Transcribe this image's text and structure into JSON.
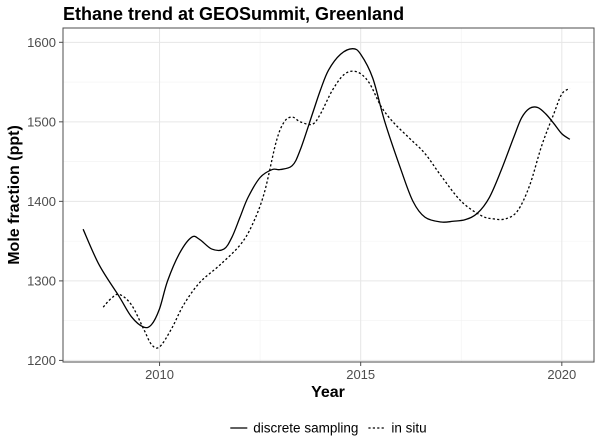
{
  "chart_data": {
    "type": "line",
    "title": "Ethane trend at GEOSummit, Greenland",
    "xlabel": "Year",
    "ylabel": "Mole fraction (ppt)",
    "xlim": [
      2007.6,
      2020.8
    ],
    "ylim": [
      1198,
      1618
    ],
    "x_ticks": [
      2010,
      2015,
      2020
    ],
    "y_ticks": [
      1200,
      1300,
      1400,
      1500,
      1600
    ],
    "grid": true,
    "legend_position": "bottom",
    "series": [
      {
        "name": "discrete sampling",
        "line_style": "solid",
        "color": "#000000",
        "x": [
          2008.1,
          2008.5,
          2009.0,
          2009.3,
          2009.6,
          2009.8,
          2010.0,
          2010.2,
          2010.5,
          2010.8,
          2011.0,
          2011.3,
          2011.6,
          2011.8,
          2012.0,
          2012.2,
          2012.5,
          2012.8,
          2013.0,
          2013.3,
          2013.5,
          2013.8,
          2014.0,
          2014.2,
          2014.5,
          2014.8,
          2015.0,
          2015.3,
          2015.6,
          2016.0,
          2016.3,
          2016.6,
          2017.0,
          2017.3,
          2017.6,
          2017.9,
          2018.2,
          2018.5,
          2018.8,
          2019.0,
          2019.2,
          2019.4,
          2019.6,
          2019.8,
          2020.0,
          2020.2
        ],
        "values": [
          1365,
          1320,
          1280,
          1255,
          1242,
          1245,
          1265,
          1300,
          1335,
          1355,
          1352,
          1340,
          1340,
          1355,
          1380,
          1405,
          1430,
          1440,
          1440,
          1445,
          1465,
          1510,
          1540,
          1565,
          1585,
          1592,
          1585,
          1555,
          1500,
          1440,
          1400,
          1380,
          1374,
          1375,
          1377,
          1385,
          1405,
          1440,
          1480,
          1505,
          1517,
          1518,
          1510,
          1498,
          1485,
          1478
        ]
      },
      {
        "name": "in situ",
        "line_style": "dotted",
        "color": "#000000",
        "x": [
          2008.6,
          2008.8,
          2009.0,
          2009.3,
          2009.6,
          2009.8,
          2010.0,
          2010.3,
          2010.6,
          2011.0,
          2011.5,
          2012.0,
          2012.3,
          2012.6,
          2012.9,
          2013.1,
          2013.3,
          2013.5,
          2013.8,
          2014.0,
          2014.3,
          2014.6,
          2014.9,
          2015.2,
          2015.5,
          2015.8,
          2016.2,
          2016.6,
          2017.0,
          2017.5,
          2018.0,
          2018.3,
          2018.6,
          2018.9,
          2019.2,
          2019.5,
          2019.8,
          2020.0,
          2020.2
        ],
        "values": [
          1267,
          1278,
          1283,
          1270,
          1240,
          1220,
          1217,
          1240,
          1270,
          1298,
          1320,
          1345,
          1370,
          1410,
          1475,
          1500,
          1506,
          1500,
          1497,
          1510,
          1540,
          1560,
          1563,
          1550,
          1520,
          1500,
          1480,
          1460,
          1432,
          1400,
          1382,
          1378,
          1378,
          1388,
          1420,
          1470,
          1510,
          1535,
          1542
        ]
      }
    ]
  }
}
